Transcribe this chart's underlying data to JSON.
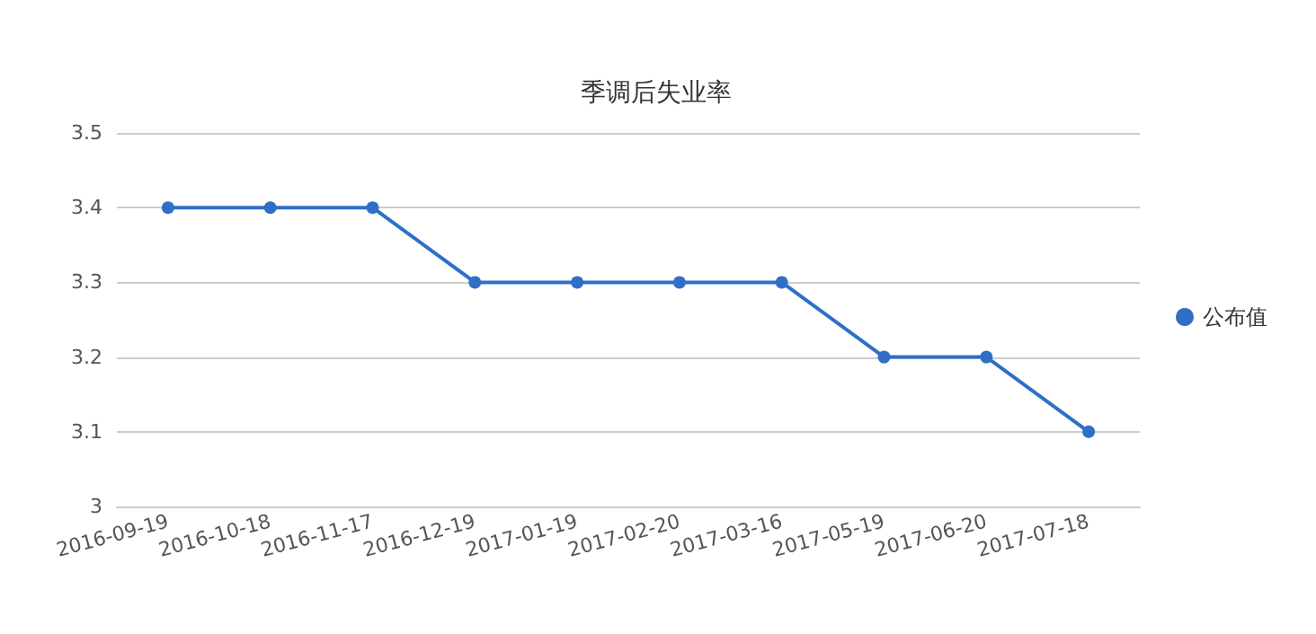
{
  "chart_data": {
    "type": "line",
    "title": "季调后失业率",
    "categories": [
      "2016-09-19",
      "2016-10-18",
      "2016-11-17",
      "2016-12-19",
      "2017-01-19",
      "2017-02-20",
      "2017-03-16",
      "2017-05-19",
      "2017-06-20",
      "2017-07-18"
    ],
    "series": [
      {
        "name": "公布值",
        "color": "#2f6fc6",
        "values": [
          3.4,
          3.4,
          3.4,
          3.3,
          3.3,
          3.3,
          3.3,
          3.2,
          3.2,
          3.1
        ]
      }
    ],
    "ylim": [
      3,
      3.5
    ],
    "yticks": [
      3,
      3.1,
      3.2,
      3.3,
      3.4,
      3.5
    ],
    "grid": "y",
    "legend": "right",
    "marker": "circle",
    "line_style": "solid"
  }
}
